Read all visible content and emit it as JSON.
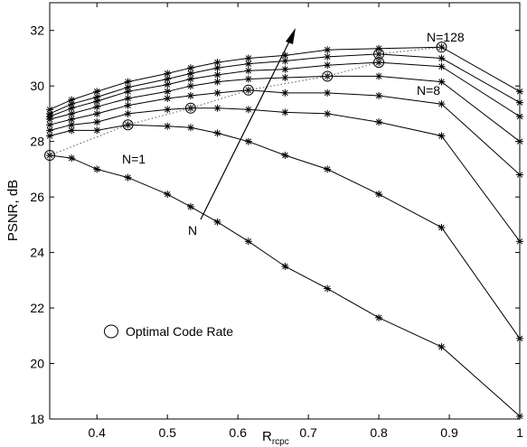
{
  "chart_data": {
    "type": "line",
    "xlabel": "R",
    "xlabel_sub": "rcpc",
    "ylabel": "PSNR, dB",
    "xlim": [
      0.333,
      1.0
    ],
    "ylim": [
      18,
      33
    ],
    "xticks": [
      0.4,
      0.5,
      0.6,
      0.7,
      0.8,
      0.9,
      1.0
    ],
    "xtick_labels": [
      "0.4",
      "0.5",
      "0.6",
      "0.7",
      "0.8",
      "0.9",
      "1"
    ],
    "yticks": [
      18,
      20,
      22,
      24,
      26,
      28,
      30,
      32
    ],
    "ytick_labels": [
      "18",
      "20",
      "22",
      "24",
      "26",
      "28",
      "30",
      "32"
    ],
    "grid": false,
    "x": [
      0.333,
      0.364,
      0.4,
      0.444,
      0.5,
      0.533,
      0.571,
      0.615,
      0.667,
      0.727,
      0.8,
      0.889,
      1.0
    ],
    "series": [
      {
        "values": [
          27.5,
          27.4,
          27.0,
          26.7,
          26.1,
          25.65,
          25.1,
          24.4,
          23.5,
          22.7,
          21.65,
          20.6,
          18.1
        ]
      },
      {
        "values": [
          28.2,
          28.4,
          28.4,
          28.6,
          28.55,
          28.5,
          28.3,
          28.0,
          27.5,
          27.0,
          26.1,
          24.9,
          20.9
        ]
      },
      {
        "values": [
          28.4,
          28.6,
          28.7,
          29.0,
          29.15,
          29.2,
          29.2,
          29.15,
          29.05,
          29.0,
          28.7,
          28.2,
          24.4
        ]
      },
      {
        "values": [
          28.6,
          28.8,
          29.0,
          29.3,
          29.55,
          29.65,
          29.75,
          29.85,
          29.75,
          29.75,
          29.65,
          29.35,
          26.8
        ]
      },
      {
        "values": [
          28.8,
          29.0,
          29.25,
          29.55,
          29.8,
          30.0,
          30.15,
          30.25,
          30.3,
          30.35,
          30.35,
          30.15,
          28.0
        ]
      },
      {
        "values": [
          28.9,
          29.2,
          29.45,
          29.8,
          30.05,
          30.25,
          30.4,
          30.55,
          30.6,
          30.75,
          30.85,
          30.7,
          28.9
        ]
      },
      {
        "values": [
          29.0,
          29.35,
          29.6,
          29.95,
          30.25,
          30.45,
          30.65,
          30.8,
          30.9,
          31.05,
          31.15,
          31.0,
          29.4
        ]
      },
      {
        "values": [
          29.15,
          29.5,
          29.8,
          30.15,
          30.45,
          30.65,
          30.85,
          31.0,
          31.1,
          31.3,
          31.35,
          31.4,
          29.8
        ]
      }
    ],
    "optimal": {
      "label": "Optimal Code Rate",
      "x": [
        0.333,
        0.444,
        0.533,
        0.615,
        0.727,
        0.8,
        0.8,
        0.889
      ],
      "values": [
        27.5,
        28.6,
        29.2,
        29.85,
        30.35,
        30.85,
        31.15,
        31.4
      ]
    },
    "annotations": {
      "n1": "N=1",
      "n8": "N=8",
      "n128": "N=128",
      "arrow_label": "N"
    },
    "legend_label": "Optimal Code Rate"
  }
}
